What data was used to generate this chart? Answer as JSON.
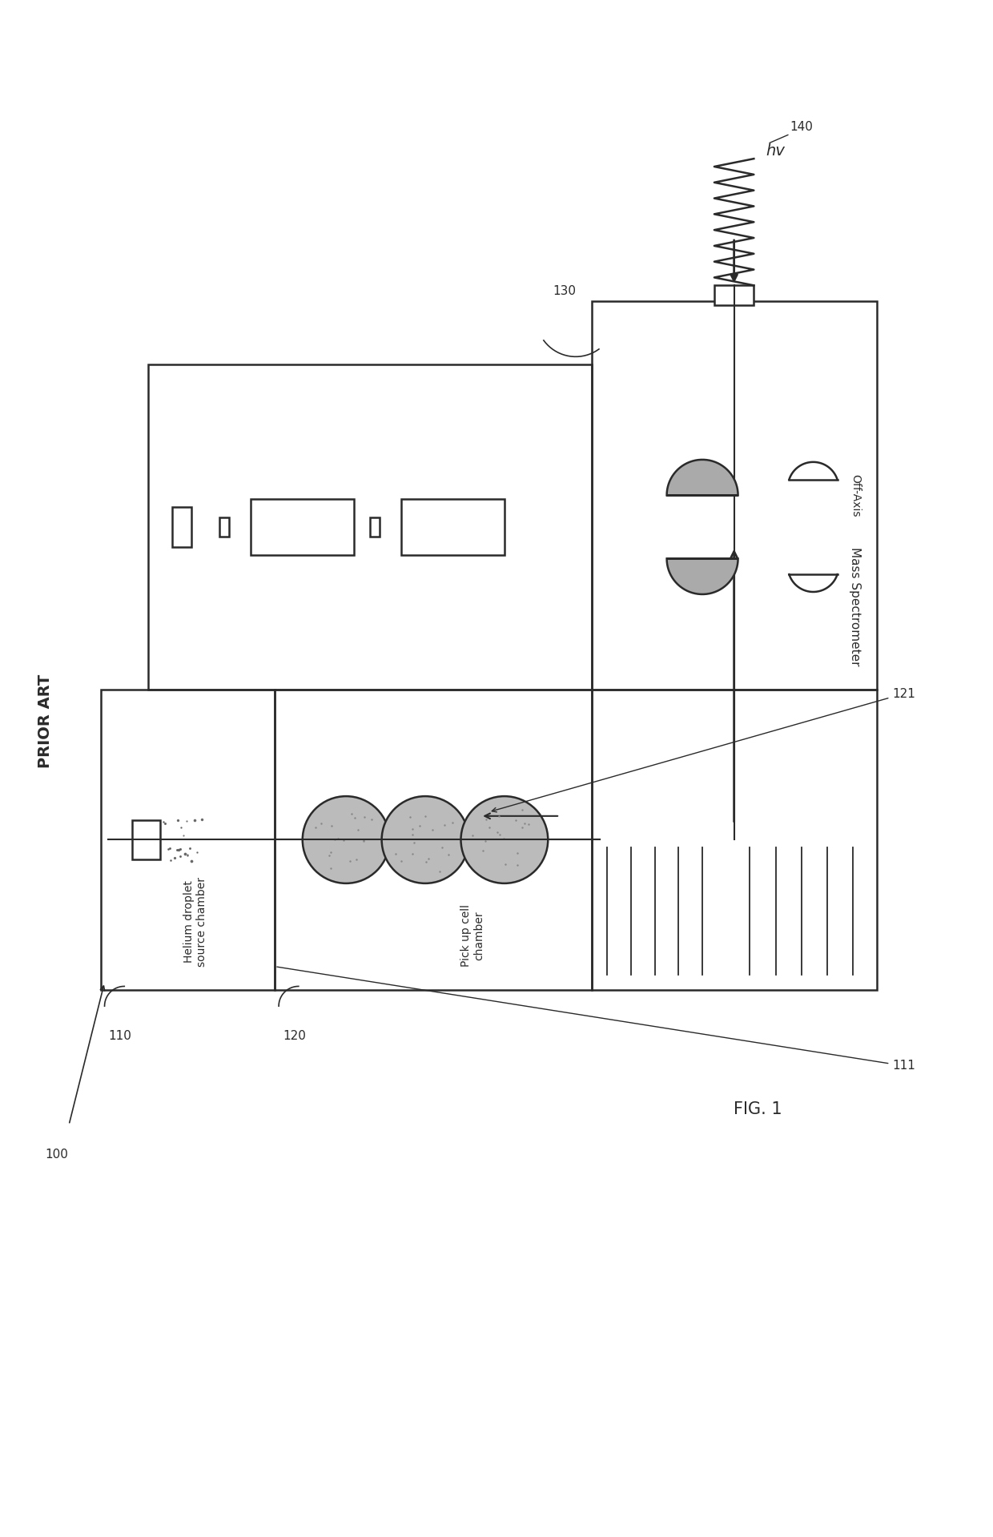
{
  "bg_color": "#ffffff",
  "line_color": "#2a2a2a",
  "prior_art_label": "PRIOR ART",
  "fig_label": "FIG. 1",
  "label_100": "100",
  "label_110": "110",
  "label_111": "111",
  "label_120": "120",
  "label_121": "121",
  "label_130": "130",
  "label_140": "140",
  "text_helium": "Helium droplet\nsource chamber",
  "text_pickup": "Pick up cell\nchamber",
  "text_offaxis": "Off-Axis",
  "text_mass": "Mass Spectrometer",
  "text_hv": "hv"
}
